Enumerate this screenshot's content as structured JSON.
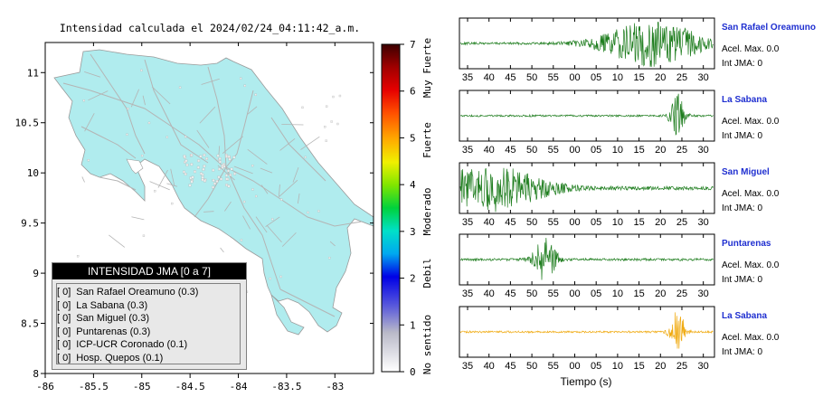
{
  "map": {
    "title": "Intensidad calculada el 2024/02/24_04:11:42_a.m.",
    "lon_ticks": [
      "-86",
      "-85.5",
      "-85",
      "-84.5",
      "-84",
      "-83.5",
      "-83"
    ],
    "lat_ticks": [
      "11",
      "10.5",
      "10",
      "9.5",
      "9",
      "8.5",
      "8"
    ],
    "colors": {
      "land": "#b0ecee",
      "roads": "#b4b4b4",
      "box_bg": "#e8e8e8",
      "box_header": "#000000"
    },
    "legend": {
      "header": "INTENSIDAD JMA [0 a 7]",
      "items": [
        {
          "level": "[ 0]",
          "name": "San Rafael Oreamuno (0.3)"
        },
        {
          "level": "[ 0]",
          "name": "La Sabana (0.3)"
        },
        {
          "level": "[ 0]",
          "name": "San Miguel (0.3)"
        },
        {
          "level": "[ 0]",
          "name": "Puntarenas (0.3)"
        },
        {
          "level": "[ 0]",
          "name": "ICP-UCR Coronado (0.1)"
        },
        {
          "level": "[ 0]",
          "name": "Hosp. Quepos (0.1)"
        }
      ]
    }
  },
  "colorbar": {
    "ticks": [
      "7",
      "6",
      "5",
      "4",
      "3",
      "2",
      "1",
      "0"
    ],
    "labels": [
      "Muy Fuerte",
      "Fuerte",
      "Moderado",
      "Debil",
      "No sentido"
    ]
  },
  "chart_data": [
    {
      "type": "scatter",
      "title": "Intensidad calculada el 2024/02/24_04:11:42_a.m.",
      "x_ticks": [
        -86,
        -85.5,
        -85,
        -84.5,
        -84,
        -83.5,
        -83
      ],
      "y_ticks": [
        8,
        8.5,
        9,
        9.5,
        10,
        10.5,
        11
      ],
      "xlim": [
        -86,
        -82.6
      ],
      "ylim": [
        8,
        11.3
      ],
      "colorbar": {
        "min": 0,
        "max": 7,
        "ticks": [
          0,
          1,
          2,
          3,
          4,
          5,
          6,
          7
        ]
      }
    },
    {
      "type": "line",
      "xlabel": "Tiempo (s)",
      "colors": {
        "trace": "#1e7d1e",
        "highlight_trace": "#f0aa10",
        "station_name": "#1f2fd0"
      },
      "series": [
        {
          "name": "San Rafael Oreamuno",
          "accel": "Acel. Max. 0.0",
          "jma": "Int JMA: 0",
          "x_ticks": [
            "35",
            "40",
            "45",
            "50",
            "55",
            "00",
            "05",
            "10",
            "15",
            "20",
            "25",
            "30"
          ],
          "burst_center": 18,
          "burst_width": 8,
          "burst_amplitude": 0.95,
          "noise": 0.05
        },
        {
          "name": "La Sabana",
          "accel": "Acel. Max. 0.0",
          "jma": "Int JMA: 0",
          "x_ticks": [
            "35",
            "40",
            "45",
            "50",
            "55",
            "00",
            "05",
            "10",
            "15",
            "20",
            "25",
            "30"
          ],
          "burst_center": 24,
          "burst_width": 1.2,
          "burst_amplitude": 0.95,
          "noise": 0.04
        },
        {
          "name": "San Miguel",
          "accel": "Acel. Max. 0.0",
          "jma": "Int JMA: 0",
          "x_ticks": [
            "35",
            "40",
            "45",
            "50",
            "55",
            "00",
            "05",
            "10",
            "15",
            "20",
            "25",
            "30"
          ],
          "burst_center": 40,
          "burst_width": 9,
          "burst_amplitude": 0.95,
          "noise": 0.08
        },
        {
          "name": "Puntarenas",
          "accel": "Acel. Max. 0.0",
          "jma": "Int JMA: 0",
          "x_ticks": [
            "35",
            "40",
            "45",
            "50",
            "55",
            "00",
            "05",
            "10",
            "15",
            "20",
            "25",
            "30"
          ],
          "burst_center": 53,
          "burst_width": 1.8,
          "burst_amplitude": 0.95,
          "noise": 0.05
        },
        {
          "name": "La Sabana",
          "accel": "Acel. Max. 0.0",
          "jma": "Int JMA: 0",
          "x_ticks": [
            "35",
            "40",
            "45",
            "50",
            "55",
            "00",
            "05",
            "10",
            "15",
            "20",
            "25",
            "30"
          ],
          "burst_center": 24,
          "burst_width": 1.2,
          "burst_amplitude": 0.95,
          "noise": 0.04
        }
      ]
    }
  ]
}
